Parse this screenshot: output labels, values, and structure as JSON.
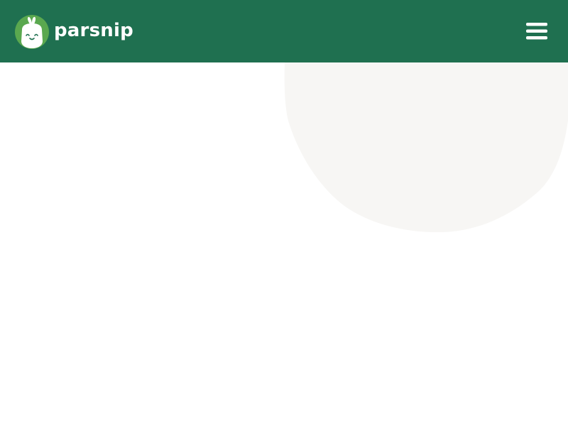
{
  "header": {
    "brand_name": "parsnip",
    "logo_icon": "parsnip-mascot-icon",
    "menu_icon": "hamburger-menu-icon"
  },
  "colors": {
    "header_background": "#1f7050",
    "logo_green": "#5aa84f",
    "logo_face": "#ffffff",
    "blob": "#f7f6f4",
    "page_background": "#ffffff"
  }
}
